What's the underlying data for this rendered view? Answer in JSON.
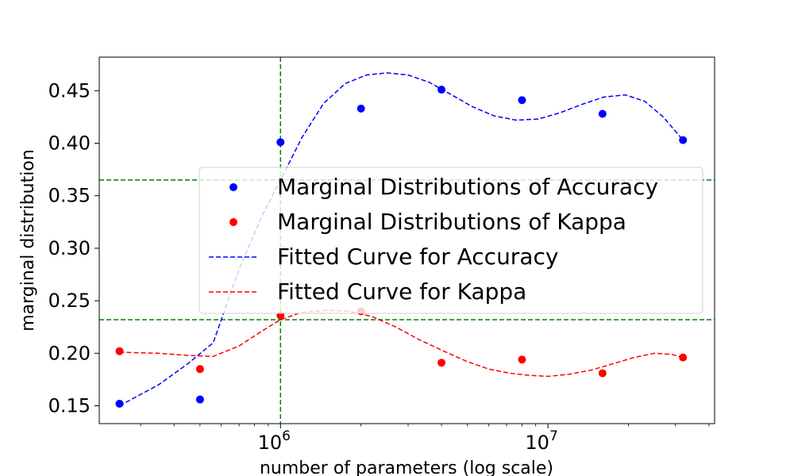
{
  "chart_data": {
    "type": "scatter",
    "title": "",
    "xlabel": "number of parameters (log scale)",
    "ylabel": "marginal distribution",
    "xscale": "log",
    "xlim": [
      210000,
      42000000
    ],
    "ylim": [
      0.133,
      0.482
    ],
    "grid": false,
    "legend_position": "center-right",
    "x_tick_labels": [
      {
        "value": 1000000,
        "base": "10",
        "exp": "6"
      },
      {
        "value": 10000000,
        "base": "10",
        "exp": "7"
      }
    ],
    "y_ticks": [
      0.15,
      0.2,
      0.25,
      0.3,
      0.35,
      0.4,
      0.45
    ],
    "y_tick_labels": [
      "0.15",
      "0.20",
      "0.25",
      "0.30",
      "0.35",
      "0.40",
      "0.45"
    ],
    "reference_lines": {
      "vertical_x": 1000000,
      "horizontal_y": [
        0.365,
        0.232
      ],
      "color": "#008000"
    },
    "series": [
      {
        "name": "Marginal Distributions of Accuracy",
        "kind": "scatter",
        "color": "#0000ff",
        "x": [
          250000,
          500000,
          1000000,
          2000000,
          4000000,
          8000000,
          16000000,
          32000000
        ],
        "y": [
          0.152,
          0.156,
          0.401,
          0.433,
          0.451,
          0.441,
          0.428,
          0.403
        ]
      },
      {
        "name": "Marginal Distributions of Kappa",
        "kind": "scatter",
        "color": "#ff0000",
        "x": [
          250000,
          500000,
          1000000,
          2000000,
          4000000,
          8000000,
          16000000,
          32000000
        ],
        "y": [
          0.202,
          0.185,
          0.236,
          0.24,
          0.191,
          0.194,
          0.181,
          0.196
        ]
      },
      {
        "name": "Fitted Curve for Accuracy",
        "kind": "line",
        "dashed": true,
        "color": "#0000ff",
        "x": [
          250000,
          350000,
          450000,
          560000,
          700000,
          850000,
          1000000,
          1200000,
          1450000,
          1750000,
          2100000,
          2500000,
          3000000,
          3600000,
          4300000,
          5200000,
          6300000,
          7600000,
          9200000,
          11100000,
          13400000,
          16200000,
          19500000,
          23000000,
          27000000,
          32000000
        ],
        "y": [
          0.15,
          0.17,
          0.19,
          0.21,
          0.28,
          0.33,
          0.365,
          0.405,
          0.438,
          0.457,
          0.465,
          0.467,
          0.465,
          0.458,
          0.447,
          0.435,
          0.426,
          0.422,
          0.423,
          0.429,
          0.437,
          0.444,
          0.446,
          0.44,
          0.425,
          0.403
        ]
      },
      {
        "name": "Fitted Curve for Kappa",
        "kind": "line",
        "dashed": true,
        "color": "#ff0000",
        "x": [
          250000,
          350000,
          450000,
          560000,
          700000,
          850000,
          1000000,
          1200000,
          1500000,
          1800000,
          2200000,
          2700000,
          3300000,
          4000000,
          5000000,
          6000000,
          7200000,
          8500000,
          10000000,
          12000000,
          14500000,
          17500000,
          21000000,
          25000000,
          29000000,
          32000000
        ],
        "y": [
          0.201,
          0.2,
          0.198,
          0.197,
          0.207,
          0.221,
          0.232,
          0.239,
          0.241,
          0.24,
          0.235,
          0.225,
          0.213,
          0.203,
          0.192,
          0.185,
          0.181,
          0.179,
          0.178,
          0.18,
          0.184,
          0.19,
          0.196,
          0.2,
          0.199,
          0.196
        ]
      }
    ]
  }
}
